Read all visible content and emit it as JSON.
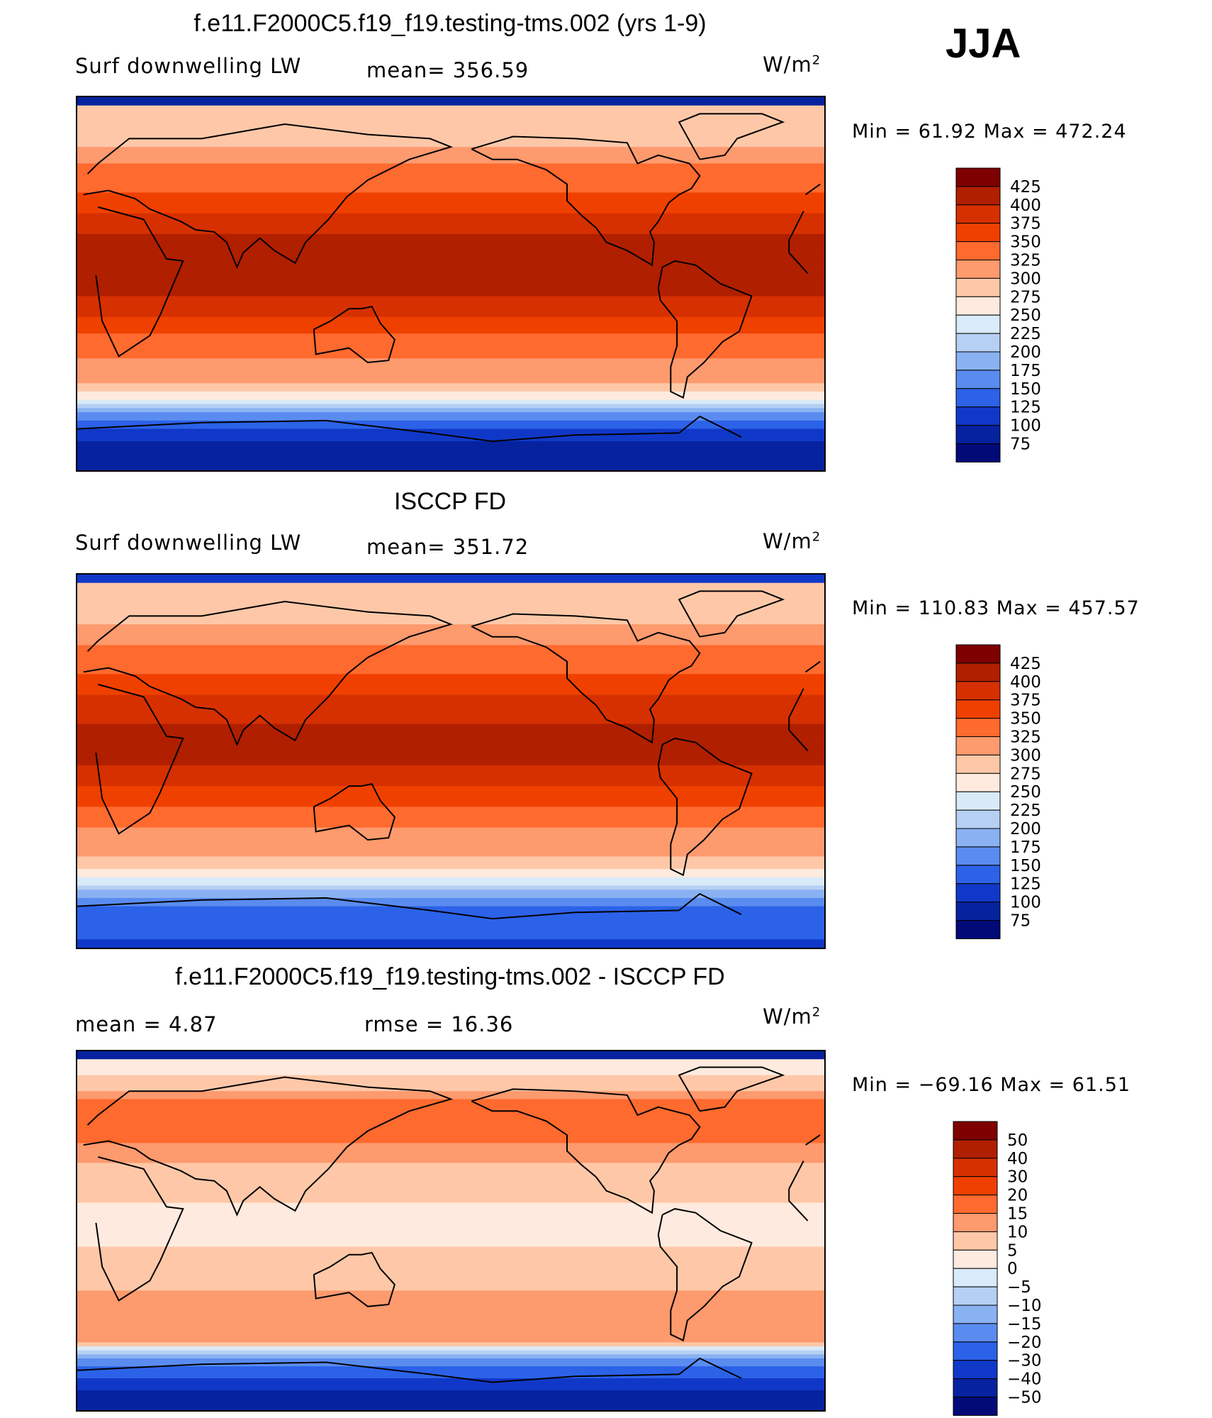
{
  "season": "JJA",
  "chart_data": [
    {
      "type": "heatmap",
      "title": "f.e11.F2000C5.f19_f19.testing-tms.002 (yrs 1-9)",
      "left_label": "Surf downwelling LW",
      "stat_label": "mean= 356.59",
      "units": "W/m",
      "units_sup": "2",
      "minmax": "Min =   61.92  Max  =  472.24",
      "colorbar_labels": [
        "425",
        "400",
        "375",
        "350",
        "325",
        "300",
        "275",
        "250",
        "225",
        "200",
        "175",
        "150",
        "125",
        "100",
        "75"
      ],
      "colorbar_colors": [
        "#7f0000",
        "#b01f00",
        "#d63000",
        "#f04000",
        "#ff6a2e",
        "#fd9a6e",
        "#fec8a8",
        "#feeade",
        "#d9eaf8",
        "#b6d0f4",
        "#8ab2f2",
        "#5a8cf0",
        "#2c62e8",
        "#1038c8",
        "#06229e",
        "#020a78"
      ],
      "zonal_profile": [
        {
          "lat": 85,
          "v": 280
        },
        {
          "lat": 70,
          "v": 290
        },
        {
          "lat": 60,
          "v": 320
        },
        {
          "lat": 45,
          "v": 345
        },
        {
          "lat": 30,
          "v": 385
        },
        {
          "lat": 15,
          "v": 420
        },
        {
          "lat": 0,
          "v": 420
        },
        {
          "lat": -15,
          "v": 375
        },
        {
          "lat": -30,
          "v": 335
        },
        {
          "lat": -45,
          "v": 310
        },
        {
          "lat": -55,
          "v": 260
        },
        {
          "lat": -62,
          "v": 180
        },
        {
          "lat": -70,
          "v": 120
        },
        {
          "lat": -80,
          "v": 80
        },
        {
          "lat": -90,
          "v": 75
        }
      ]
    },
    {
      "type": "heatmap",
      "title": "ISCCP FD",
      "left_label": "Surf downwelling LW",
      "stat_label": "mean= 351.72",
      "units": "W/m",
      "units_sup": "2",
      "minmax": "Min  =  110.83  Max  =  457.57",
      "colorbar_labels": [
        "425",
        "400",
        "375",
        "350",
        "325",
        "300",
        "275",
        "250",
        "225",
        "200",
        "175",
        "150",
        "125",
        "100",
        "75"
      ],
      "colorbar_colors": [
        "#7f0000",
        "#b01f00",
        "#d63000",
        "#f04000",
        "#ff6a2e",
        "#fd9a6e",
        "#fec8a8",
        "#feeade",
        "#d9eaf8",
        "#b6d0f4",
        "#8ab2f2",
        "#5a8cf0",
        "#2c62e8",
        "#1038c8",
        "#06229e",
        "#020a78"
      ],
      "zonal_profile": [
        {
          "lat": 85,
          "v": 280
        },
        {
          "lat": 70,
          "v": 290
        },
        {
          "lat": 60,
          "v": 315
        },
        {
          "lat": 45,
          "v": 345
        },
        {
          "lat": 30,
          "v": 380
        },
        {
          "lat": 15,
          "v": 405
        },
        {
          "lat": 0,
          "v": 405
        },
        {
          "lat": -15,
          "v": 370
        },
        {
          "lat": -30,
          "v": 330
        },
        {
          "lat": -45,
          "v": 300
        },
        {
          "lat": -55,
          "v": 265
        },
        {
          "lat": -62,
          "v": 200
        },
        {
          "lat": -70,
          "v": 150
        },
        {
          "lat": -80,
          "v": 130
        },
        {
          "lat": -90,
          "v": 120
        }
      ]
    },
    {
      "type": "heatmap",
      "title": "f.e11.F2000C5.f19_f19.testing-tms.002 - ISCCP FD",
      "left_label": "mean =    4.87",
      "stat_label": "rmse =   16.36",
      "units": "W/m",
      "units_sup": "2",
      "minmax": "Min  = −69.16  Max  =    61.51",
      "colorbar_labels": [
        "50",
        "40",
        "30",
        "20",
        "15",
        "10",
        "5",
        "0",
        "−5",
        "−10",
        "−15",
        "−20",
        "−30",
        "−40",
        "−50"
      ],
      "colorbar_colors": [
        "#7f0000",
        "#b01f00",
        "#d63000",
        "#f04000",
        "#ff6a2e",
        "#fd9a6e",
        "#fec8a8",
        "#feeade",
        "#d9eaf8",
        "#b6d0f4",
        "#8ab2f2",
        "#5a8cf0",
        "#2c62e8",
        "#1038c8",
        "#06229e",
        "#020a78"
      ],
      "zonal_profile": [
        {
          "lat": 85,
          "v": 0
        },
        {
          "lat": 70,
          "v": 10
        },
        {
          "lat": 60,
          "v": 20
        },
        {
          "lat": 45,
          "v": 15
        },
        {
          "lat": 30,
          "v": 8
        },
        {
          "lat": 15,
          "v": 5
        },
        {
          "lat": 0,
          "v": 4
        },
        {
          "lat": -15,
          "v": 6
        },
        {
          "lat": -30,
          "v": 10
        },
        {
          "lat": -45,
          "v": 14
        },
        {
          "lat": -55,
          "v": 12
        },
        {
          "lat": -62,
          "v": -10
        },
        {
          "lat": -70,
          "v": -25
        },
        {
          "lat": -80,
          "v": -40
        },
        {
          "lat": -90,
          "v": -45
        }
      ]
    }
  ]
}
